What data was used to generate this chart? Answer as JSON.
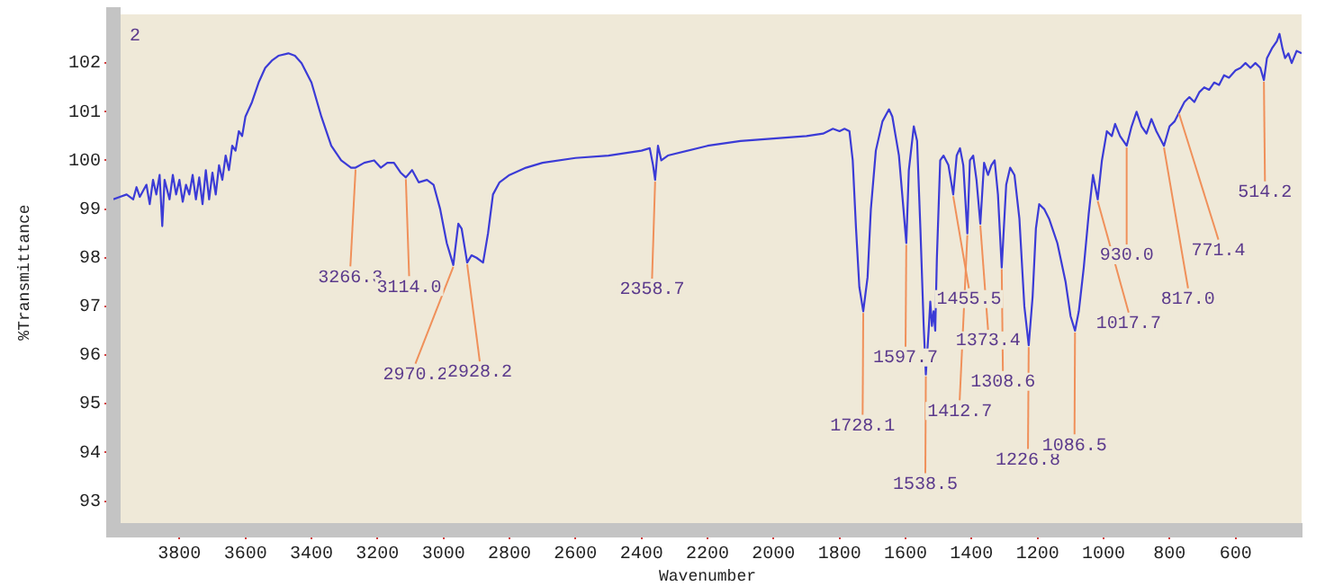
{
  "chart_data": {
    "type": "line",
    "xlabel": "Wavenumber",
    "ylabel": "%Transmittance",
    "xlim": [
      4000,
      400
    ],
    "ylim": [
      92.4,
      103
    ],
    "xticks": [
      3800,
      3600,
      3400,
      3200,
      3000,
      2800,
      2600,
      2400,
      2200,
      2000,
      1800,
      1600,
      1400,
      1200,
      1000,
      800,
      600
    ],
    "yticks": [
      93,
      94,
      95,
      96,
      97,
      98,
      99,
      100,
      101,
      102
    ],
    "series": [
      {
        "color": "#3b3bd6",
        "x": [
          4000,
          3980,
          3960,
          3940,
          3930,
          3920,
          3900,
          3890,
          3880,
          3870,
          3860,
          3852,
          3845,
          3830,
          3820,
          3810,
          3800,
          3790,
          3780,
          3770,
          3760,
          3750,
          3740,
          3730,
          3720,
          3710,
          3700,
          3690,
          3680,
          3670,
          3660,
          3650,
          3640,
          3630,
          3620,
          3610,
          3600,
          3580,
          3560,
          3540,
          3520,
          3500,
          3470,
          3450,
          3430,
          3400,
          3370,
          3340,
          3310,
          3280,
          3266.3,
          3240,
          3210,
          3190,
          3170,
          3150,
          3130,
          3114,
          3095,
          3075,
          3050,
          3030,
          3010,
          2990,
          2970.2,
          2955,
          2945,
          2928.2,
          2915,
          2900,
          2880,
          2865,
          2850,
          2830,
          2800,
          2750,
          2700,
          2600,
          2500,
          2400,
          2375,
          2365,
          2358.7,
          2350,
          2340,
          2320,
          2200,
          2100,
          2000,
          1900,
          1850,
          1820,
          1800,
          1785,
          1770,
          1760,
          1750,
          1740,
          1728.1,
          1715,
          1705,
          1690,
          1670,
          1650,
          1640,
          1630,
          1620,
          1610,
          1597.7,
          1590,
          1575,
          1565,
          1555,
          1545,
          1538.5,
          1530,
          1525,
          1520,
          1515,
          1510,
          1505,
          1495,
          1485,
          1470,
          1455.5,
          1445,
          1435,
          1425,
          1412.7,
          1405,
          1395,
          1385,
          1373.4,
          1362,
          1350,
          1340,
          1330,
          1320,
          1308.6,
          1295,
          1283,
          1270,
          1255,
          1240,
          1226.8,
          1215,
          1205,
          1195,
          1180,
          1165,
          1140,
          1115,
          1100,
          1086.5,
          1075,
          1060,
          1045,
          1032,
          1017.7,
          1005,
          990,
          975,
          965,
          950,
          930,
          915,
          900,
          885,
          870,
          855,
          840,
          817,
          800,
          785,
          770,
          755,
          740,
          725,
          710,
          695,
          680,
          665,
          650,
          635,
          620,
          600,
          585,
          570,
          555,
          540,
          525,
          514.2,
          505,
          490,
          475,
          467,
          458,
          450,
          440,
          430,
          415,
          400
        ],
        "values": [
          99.2,
          99.25,
          99.3,
          99.2,
          99.45,
          99.25,
          99.5,
          99.1,
          99.6,
          99.3,
          99.7,
          98.65,
          99.6,
          99.2,
          99.7,
          99.3,
          99.6,
          99.15,
          99.5,
          99.3,
          99.7,
          99.2,
          99.65,
          99.1,
          99.8,
          99.2,
          99.75,
          99.3,
          99.9,
          99.6,
          100.1,
          99.8,
          100.3,
          100.2,
          100.6,
          100.5,
          100.9,
          101.2,
          101.6,
          101.9,
          102.05,
          102.15,
          102.2,
          102.15,
          102,
          101.6,
          100.9,
          100.3,
          100,
          99.85,
          99.85,
          99.95,
          100,
          99.85,
          99.95,
          99.95,
          99.75,
          99.65,
          99.8,
          99.55,
          99.6,
          99.5,
          99,
          98.3,
          97.85,
          98.7,
          98.6,
          97.9,
          98.05,
          98,
          97.9,
          98.5,
          99.3,
          99.55,
          99.7,
          99.85,
          99.95,
          100.05,
          100.1,
          100.2,
          100.25,
          99.9,
          99.6,
          100.3,
          100,
          100.1,
          100.3,
          100.4,
          100.45,
          100.5,
          100.55,
          100.65,
          100.6,
          100.65,
          100.6,
          100,
          98.6,
          97.4,
          96.9,
          97.6,
          99,
          100.2,
          100.8,
          101.05,
          100.9,
          100.5,
          100.1,
          99.3,
          98.3,
          99.8,
          100.7,
          100.4,
          98.6,
          96.6,
          95.6,
          96.5,
          97.1,
          96.6,
          96.9,
          96.5,
          98,
          100,
          100.1,
          99.9,
          99.3,
          100.1,
          100.25,
          99.9,
          98.5,
          100,
          100.1,
          99.6,
          98.7,
          99.95,
          99.7,
          99.9,
          100,
          99.3,
          97.8,
          99.5,
          99.85,
          99.7,
          98.8,
          97,
          96.2,
          97.2,
          98.6,
          99.1,
          99,
          98.8,
          98.3,
          97.5,
          96.8,
          96.5,
          96.9,
          97.8,
          98.9,
          99.7,
          99.2,
          100,
          100.6,
          100.5,
          100.75,
          100.5,
          100.3,
          100.7,
          101,
          100.7,
          100.55,
          100.85,
          100.6,
          100.3,
          100.7,
          100.8,
          101,
          101.2,
          101.3,
          101.2,
          101.4,
          101.5,
          101.45,
          101.6,
          101.55,
          101.75,
          101.7,
          101.85,
          101.9,
          102,
          101.9,
          102,
          101.9,
          101.65,
          102.1,
          102.3,
          102.45,
          102.6,
          102.3,
          102.1,
          102.2,
          102,
          102.25,
          102.2
        ]
      }
    ],
    "annotations": [
      "2",
      {
        "text": "3266.3",
        "x": 3266.3,
        "y": 99.85
      },
      {
        "text": "3114.0",
        "x": 3114,
        "y": 99.65
      },
      {
        "text": "2970.2",
        "x": 2970.2,
        "y": 97.85
      },
      {
        "text": "2928.2",
        "x": 2928.2,
        "y": 97.9
      },
      {
        "text": "2358.7",
        "x": 2358.7,
        "y": 99.6
      },
      {
        "text": "1728.1",
        "x": 1728.1,
        "y": 96.9
      },
      {
        "text": "1597.7",
        "x": 1597.7,
        "y": 98.3
      },
      {
        "text": "1538.5",
        "x": 1538.5,
        "y": 95.6
      },
      {
        "text": "1455.5",
        "x": 1455.5,
        "y": 99.3
      },
      {
        "text": "1412.7",
        "x": 1412.7,
        "y": 98.5
      },
      {
        "text": "1373.4",
        "x": 1373.4,
        "y": 98.7
      },
      {
        "text": "1308.6",
        "x": 1308.6,
        "y": 97.8
      },
      {
        "text": "1226.8",
        "x": 1226.8,
        "y": 96.2
      },
      {
        "text": "1086.5",
        "x": 1086.5,
        "y": 96.5
      },
      {
        "text": "1017.7",
        "x": 1017.7,
        "y": 99.2
      },
      {
        "text": "930.0",
        "x": 930,
        "y": 100.3
      },
      {
        "text": "817.0",
        "x": 817,
        "y": 100.3
      },
      {
        "text": "771.4",
        "x": 771.4,
        "y": 101
      },
      {
        "text": "514.2",
        "x": 514.2,
        "y": 101.65
      }
    ]
  }
}
